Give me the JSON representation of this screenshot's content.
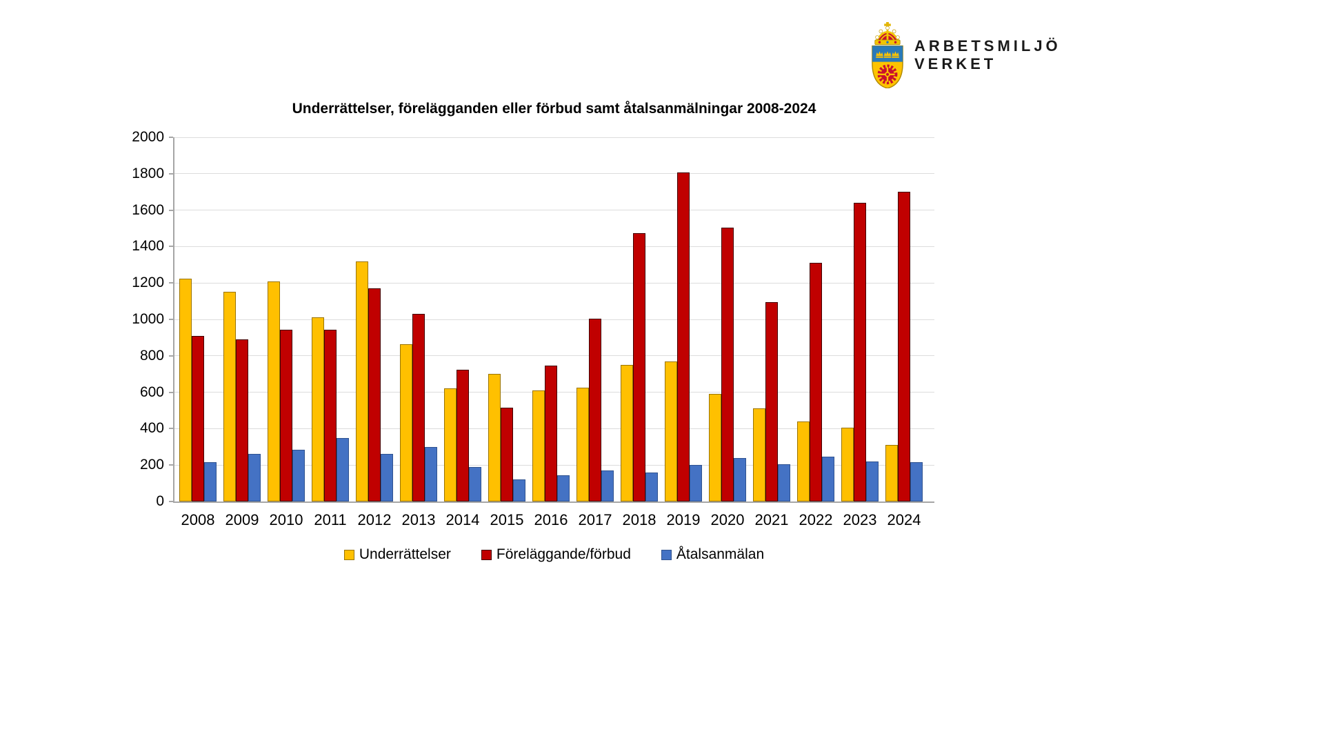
{
  "logo": {
    "line1": "ARBETSMILJÖ",
    "line2": "VERKET"
  },
  "chart_data": {
    "type": "bar",
    "title": "Underrättelser, förelägganden eller förbud samt åtalsanmälningar 2008-2024",
    "categories": [
      "2008",
      "2009",
      "2010",
      "2011",
      "2012",
      "2013",
      "2014",
      "2015",
      "2016",
      "2017",
      "2018",
      "2019",
      "2020",
      "2021",
      "2022",
      "2023",
      "2024"
    ],
    "series": [
      {
        "name": "Underrättelser",
        "color": "#FFC000",
        "border": "#997300",
        "values": [
          1225,
          1150,
          1210,
          1010,
          1320,
          865,
          620,
          700,
          610,
          625,
          750,
          770,
          590,
          510,
          440,
          405,
          310
        ]
      },
      {
        "name": "Föreläggande/förbud",
        "color": "#C00000",
        "border": "#3F0000",
        "values": [
          910,
          890,
          945,
          945,
          1170,
          1030,
          725,
          515,
          745,
          1005,
          1475,
          1805,
          1505,
          1095,
          1310,
          1640,
          1700
        ]
      },
      {
        "name": "Åtalsanmälan",
        "color": "#4472C4",
        "border": "#2F528F",
        "values": [
          215,
          260,
          285,
          350,
          260,
          300,
          190,
          120,
          145,
          170,
          160,
          200,
          240,
          205,
          245,
          220,
          215
        ]
      }
    ],
    "xlabel": "",
    "ylabel": "",
    "ylim": [
      0,
      2000
    ],
    "ytick_step": 200,
    "yticks": [
      0,
      200,
      400,
      600,
      800,
      1000,
      1200,
      1400,
      1600,
      1800,
      2000
    ],
    "grid": true,
    "legend_position": "bottom"
  },
  "colors": {
    "gridline": "#DCDCDC",
    "axis": "#A6A6A6",
    "text": "#000000",
    "background": "#FFFFFF"
  }
}
